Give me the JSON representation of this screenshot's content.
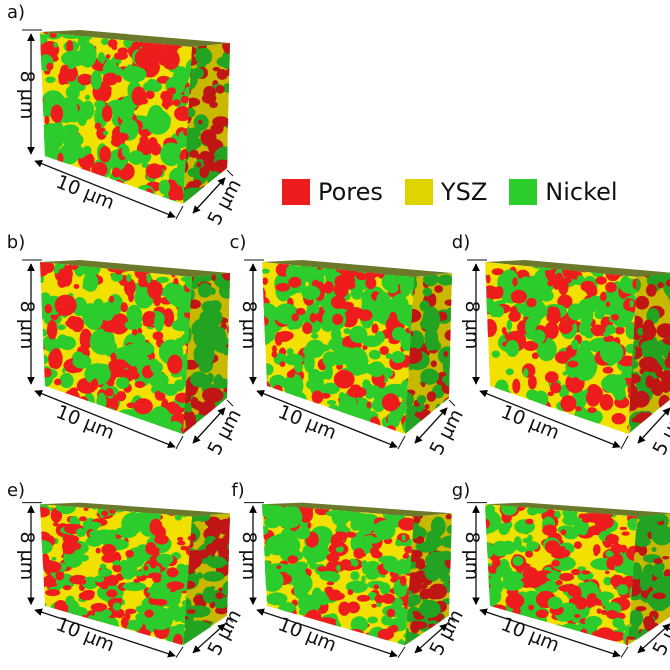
{
  "colors": {
    "pores": "#ee1c1c",
    "ysz": "#f2e000",
    "nickel": "#2ccc2c"
  },
  "legend": [
    {
      "key": "pores",
      "label": "Pores"
    },
    {
      "key": "ysz",
      "label": "YSZ"
    },
    {
      "key": "nickel",
      "label": "Nickel"
    }
  ],
  "dimensions": {
    "height": "8 µm",
    "width": "10 µm",
    "depth": "5 µm"
  },
  "panels": [
    {
      "label": "a)"
    },
    {
      "label": "b)"
    },
    {
      "label": "c)"
    },
    {
      "label": "d)"
    },
    {
      "label": "e)"
    },
    {
      "label": "f)"
    },
    {
      "label": "g)"
    }
  ]
}
